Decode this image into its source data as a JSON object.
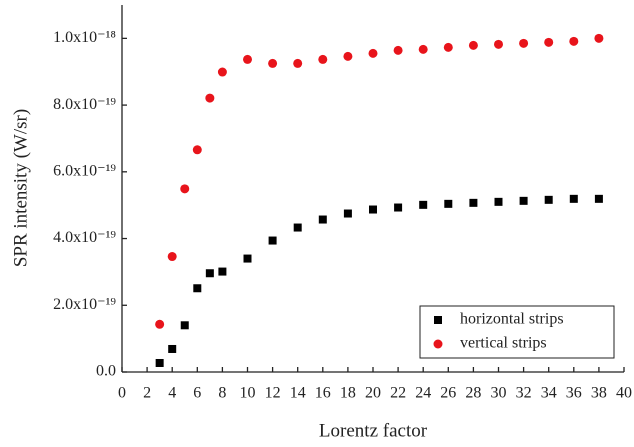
{
  "chart_data": {
    "type": "scatter",
    "x_label": "Lorentz factor",
    "y_label": "SPR intensity (W/sr)",
    "xlim": [
      0,
      40
    ],
    "xticks": [
      0,
      2,
      4,
      6,
      8,
      10,
      12,
      14,
      16,
      18,
      20,
      22,
      24,
      26,
      28,
      30,
      32,
      34,
      36,
      38,
      40
    ],
    "ylim": [
      0,
      1.1e-18
    ],
    "yticks": [
      {
        "value": 0,
        "label": "0.0"
      },
      {
        "value": 2e-19,
        "label": "2.0x10⁻¹⁹"
      },
      {
        "value": 4e-19,
        "label": "4.0x10⁻¹⁹"
      },
      {
        "value": 6e-19,
        "label": "6.0x10⁻¹⁹"
      },
      {
        "value": 8e-19,
        "label": "8.0x10⁻¹⁹"
      },
      {
        "value": 1e-18,
        "label": "1.0x10⁻¹⁸"
      }
    ],
    "legend_position": "lower right",
    "series": [
      {
        "name": "horizontal strips",
        "color": "#000000",
        "marker": "square",
        "x": [
          3,
          4,
          5,
          6,
          7,
          8,
          10,
          12,
          14,
          16,
          18,
          20,
          22,
          24,
          26,
          28,
          30,
          32,
          34,
          36,
          38
        ],
        "values": [
          2.7e-20,
          6.9e-20,
          1.4e-19,
          2.51e-19,
          2.96e-19,
          3.01e-19,
          3.4e-19,
          3.94e-19,
          4.33e-19,
          4.57e-19,
          4.75e-19,
          4.87e-19,
          4.93e-19,
          5.01e-19,
          5.04e-19,
          5.07e-19,
          5.1e-19,
          5.13e-19,
          5.16e-19,
          5.19e-19,
          5.19e-19
        ]
      },
      {
        "name": "vertical strips",
        "color": "#e8141b",
        "marker": "circle",
        "x": [
          3,
          4,
          5,
          6,
          7,
          8,
          10,
          12,
          14,
          16,
          18,
          20,
          22,
          24,
          26,
          28,
          30,
          32,
          34,
          36,
          38
        ],
        "values": [
          1.43e-19,
          3.46e-19,
          5.49e-19,
          6.66e-19,
          8.21e-19,
          8.99e-19,
          9.37e-19,
          9.25e-19,
          9.25e-19,
          9.37e-19,
          9.46e-19,
          9.55e-19,
          9.64e-19,
          9.67e-19,
          9.73e-19,
          9.79e-19,
          9.82e-19,
          9.85e-19,
          9.88e-19,
          9.91e-19,
          1e-18
        ]
      }
    ]
  }
}
